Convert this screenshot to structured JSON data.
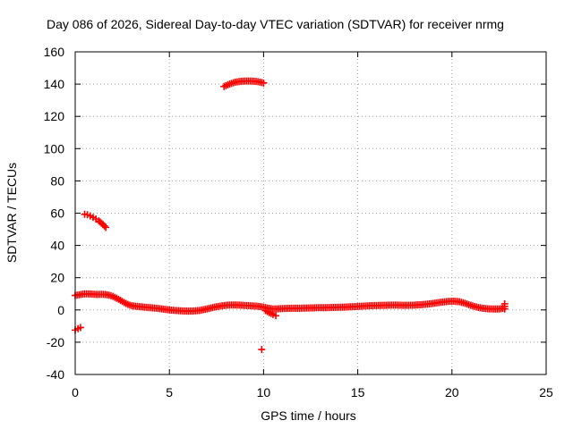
{
  "chart_data": {
    "type": "scatter",
    "title": "Day 086 of 2026, Sidereal Day-to-day VTEC variation (SDTVAR) for receiver nrmg",
    "xlabel": "GPS time / hours",
    "ylabel": "SDTVAR / TECUs",
    "xlim": [
      0,
      25
    ],
    "ylim": [
      -40,
      160
    ],
    "x_ticks": [
      0,
      5,
      10,
      15,
      20,
      25
    ],
    "y_ticks": [
      -40,
      -20,
      0,
      20,
      40,
      60,
      80,
      100,
      120,
      140,
      160
    ],
    "grid": true,
    "marker": "+",
    "colors": {
      "series": "#ff0000",
      "axis": "#000000",
      "grid": "#a0a0a0"
    },
    "series": [
      {
        "name": "main-track",
        "points": [
          [
            0.0,
            9.0
          ],
          [
            0.2,
            9.4
          ],
          [
            0.4,
            9.8
          ],
          [
            0.6,
            10.0
          ],
          [
            0.8,
            9.9
          ],
          [
            1.0,
            9.7
          ],
          [
            1.2,
            9.6
          ],
          [
            1.4,
            9.7
          ],
          [
            1.6,
            9.6
          ],
          [
            1.8,
            9.2
          ],
          [
            2.0,
            8.4
          ],
          [
            2.2,
            7.2
          ],
          [
            2.4,
            6.0
          ],
          [
            2.6,
            4.6
          ],
          [
            2.8,
            3.4
          ],
          [
            3.0,
            2.6
          ],
          [
            3.3,
            2.2
          ],
          [
            3.6,
            1.8
          ],
          [
            3.9,
            1.5
          ],
          [
            4.2,
            1.2
          ],
          [
            4.5,
            0.8
          ],
          [
            4.8,
            0.3
          ],
          [
            5.1,
            -0.1
          ],
          [
            5.4,
            -0.4
          ],
          [
            5.7,
            -0.6
          ],
          [
            6.0,
            -0.7
          ],
          [
            6.3,
            -0.6
          ],
          [
            6.6,
            -0.3
          ],
          [
            6.9,
            0.4
          ],
          [
            7.2,
            1.2
          ],
          [
            7.5,
            2.0
          ],
          [
            7.8,
            2.6
          ],
          [
            8.1,
            3.0
          ],
          [
            8.4,
            3.1
          ],
          [
            8.7,
            3.0
          ],
          [
            9.0,
            2.8
          ],
          [
            9.3,
            2.6
          ],
          [
            9.6,
            2.4
          ],
          [
            9.9,
            2.0
          ],
          [
            10.2,
            1.2
          ],
          [
            10.5,
            0.6
          ],
          [
            10.8,
            0.7
          ],
          [
            11.1,
            0.9
          ],
          [
            11.4,
            1.0
          ],
          [
            11.7,
            1.1
          ],
          [
            12.0,
            1.1
          ],
          [
            12.3,
            1.2
          ],
          [
            12.6,
            1.3
          ],
          [
            12.9,
            1.4
          ],
          [
            13.2,
            1.4
          ],
          [
            13.5,
            1.5
          ],
          [
            13.8,
            1.6
          ],
          [
            14.1,
            1.7
          ],
          [
            14.4,
            1.8
          ],
          [
            14.7,
            2.0
          ],
          [
            15.0,
            2.2
          ],
          [
            15.3,
            2.4
          ],
          [
            15.6,
            2.6
          ],
          [
            15.9,
            2.7
          ],
          [
            16.2,
            2.8
          ],
          [
            16.5,
            2.9
          ],
          [
            16.8,
            3.0
          ],
          [
            17.1,
            3.0
          ],
          [
            17.4,
            2.9
          ],
          [
            17.7,
            2.9
          ],
          [
            18.0,
            3.0
          ],
          [
            18.3,
            3.2
          ],
          [
            18.6,
            3.5
          ],
          [
            18.9,
            3.9
          ],
          [
            19.2,
            4.4
          ],
          [
            19.5,
            4.9
          ],
          [
            19.8,
            5.3
          ],
          [
            20.1,
            5.4
          ],
          [
            20.4,
            5.1
          ],
          [
            20.7,
            4.1
          ],
          [
            21.0,
            2.9
          ],
          [
            21.3,
            1.8
          ],
          [
            21.6,
            1.1
          ],
          [
            21.9,
            0.7
          ],
          [
            22.2,
            0.6
          ],
          [
            22.5,
            0.6
          ],
          [
            22.7,
            1.0
          ],
          [
            22.8,
            0.6
          ],
          [
            22.8,
            3.8
          ]
        ]
      },
      {
        "name": "upper-arc",
        "points": [
          [
            7.9,
            138.5
          ],
          [
            8.1,
            139.6
          ],
          [
            8.3,
            140.5
          ],
          [
            8.5,
            141.2
          ],
          [
            8.7,
            141.6
          ],
          [
            8.9,
            141.8
          ],
          [
            9.1,
            141.9
          ],
          [
            9.3,
            141.9
          ],
          [
            9.5,
            141.8
          ],
          [
            9.7,
            141.5
          ],
          [
            9.9,
            141.0
          ],
          [
            10.0,
            140.7
          ]
        ]
      },
      {
        "name": "short-arc",
        "points": [
          [
            0.5,
            59.3
          ],
          [
            0.65,
            59.0
          ],
          [
            0.8,
            58.3
          ],
          [
            0.95,
            57.4
          ],
          [
            1.1,
            56.4
          ],
          [
            1.25,
            55.2
          ],
          [
            1.4,
            53.8
          ],
          [
            1.55,
            52.1
          ],
          [
            1.62,
            51.2
          ]
        ]
      },
      {
        "name": "negative-fragment",
        "points": [
          [
            10.1,
            -0.4
          ],
          [
            10.3,
            -1.6
          ],
          [
            10.5,
            -2.8
          ],
          [
            10.65,
            -3.6
          ]
        ]
      },
      {
        "name": "start-dip",
        "points": [
          [
            0.0,
            -12.5
          ],
          [
            0.15,
            -11.6
          ],
          [
            0.28,
            -10.9
          ]
        ]
      },
      {
        "name": "outlier",
        "points": [
          [
            9.9,
            -24.5
          ]
        ]
      }
    ]
  }
}
